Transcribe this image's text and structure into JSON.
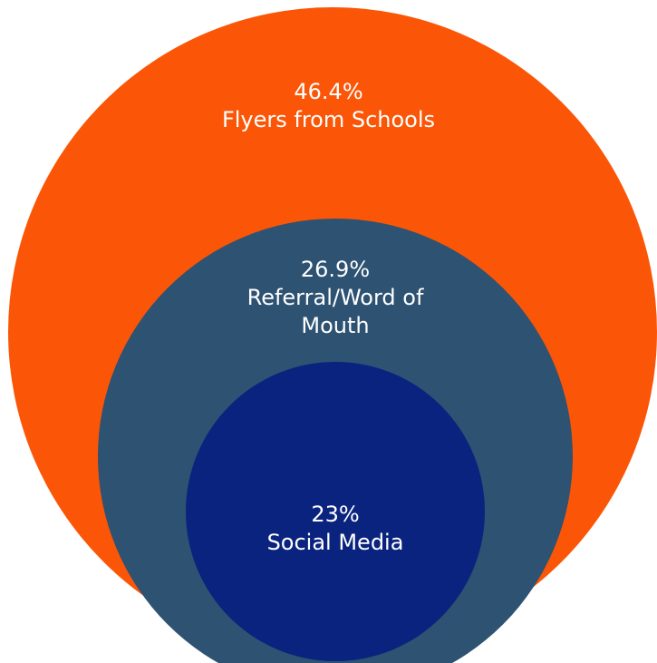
{
  "chart_data": {
    "type": "bubble",
    "title": "",
    "series": [
      {
        "label": "Flyers from Schools",
        "value": 46.4,
        "display": "46.4%",
        "name_lines": [
          "Flyers from Schools"
        ],
        "color": "#fb5607"
      },
      {
        "label": "Referral/Word of Mouth",
        "value": 26.9,
        "display": "26.9%",
        "name_lines": [
          "Referral/Word of",
          "Mouth"
        ],
        "color": "#2d5272"
      },
      {
        "label": "Social Media",
        "value": 23,
        "display": "23%",
        "name_lines": [
          "Social Media"
        ],
        "color": "#0a237e"
      }
    ]
  }
}
